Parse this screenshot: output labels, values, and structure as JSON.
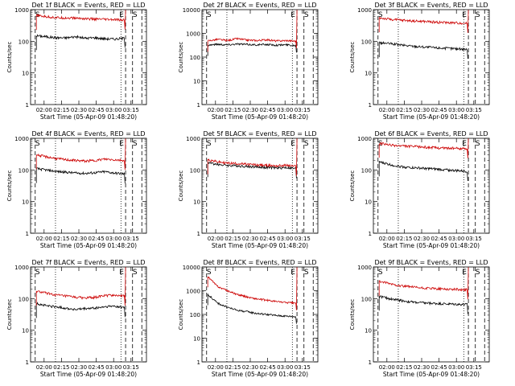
{
  "chart_data": [
    {
      "type": "line",
      "title": "Det 1f BLACK = Events, RED = LLD",
      "xlabel": "Start Time (05-Apr-09 01:48:20)",
      "ylabel": "Counts/sec",
      "y_scale": "log",
      "ylim": [
        1,
        1000
      ],
      "x_ticks": [
        "02:00",
        "02:15",
        "02:30",
        "02:45",
        "03:00",
        "03:15"
      ],
      "y_ticks": [
        "1",
        "10",
        "100",
        "1000"
      ],
      "markers": [
        "S",
        "E",
        "S"
      ],
      "series": [
        {
          "name": "Events",
          "color": "#000000",
          "values": [
            150,
            140,
            130,
            128,
            140,
            125,
            130,
            120,
            118,
            125
          ]
        },
        {
          "name": "LLD",
          "color": "#cc0000",
          "values": [
            650,
            600,
            560,
            550,
            540,
            520,
            500,
            490,
            480,
            470
          ]
        }
      ]
    },
    {
      "type": "line",
      "title": "Det 2f BLACK = Events, RED = LLD",
      "xlabel": "Start Time (05-Apr-09 01:48:20)",
      "ylabel": "Counts/sec",
      "y_scale": "log",
      "ylim": [
        1,
        10000
      ],
      "x_ticks": [
        "02:00",
        "02:15",
        "02:30",
        "02:45",
        "03:00",
        "03:15"
      ],
      "y_ticks": [
        "1",
        "10",
        "100",
        "1000",
        "10000"
      ],
      "markers": [
        "S",
        "E",
        "S"
      ],
      "series": [
        {
          "name": "Events",
          "color": "#000000",
          "values": [
            320,
            350,
            330,
            360,
            340,
            330,
            340,
            320,
            330,
            310
          ]
        },
        {
          "name": "LLD",
          "color": "#cc0000",
          "values": [
            480,
            560,
            500,
            600,
            520,
            500,
            540,
            480,
            500,
            470
          ]
        }
      ]
    },
    {
      "type": "line",
      "title": "Det 3f BLACK = Events, RED = LLD",
      "xlabel": "Start Time (05-Apr-09 01:48:20)",
      "ylabel": "Counts/sec",
      "y_scale": "log",
      "ylim": [
        1,
        1000
      ],
      "x_ticks": [
        "02:00",
        "02:15",
        "02:30",
        "02:45",
        "03:00",
        "03:15"
      ],
      "y_ticks": [
        "1",
        "10",
        "100",
        "1000"
      ],
      "markers": [
        "S",
        "E",
        "S"
      ],
      "series": [
        {
          "name": "Events",
          "color": "#000000",
          "values": [
            90,
            85,
            78,
            72,
            68,
            65,
            62,
            60,
            58,
            56
          ]
        },
        {
          "name": "LLD",
          "color": "#cc0000",
          "values": [
            550,
            500,
            470,
            450,
            430,
            420,
            400,
            390,
            380,
            370
          ]
        }
      ]
    },
    {
      "type": "line",
      "title": "Det 4f BLACK = Events, RED = LLD",
      "xlabel": "Start Time (05-Apr-09 01:48:20)",
      "ylabel": "Counts/sec",
      "y_scale": "log",
      "ylim": [
        1,
        1000
      ],
      "x_ticks": [
        "02:00",
        "02:15",
        "02:30",
        "02:45",
        "03:00",
        "03:15"
      ],
      "y_ticks": [
        "1",
        "10",
        "100",
        "1000"
      ],
      "markers": [
        "S",
        "E",
        "S"
      ],
      "series": [
        {
          "name": "Events",
          "color": "#000000",
          "values": [
            110,
            100,
            90,
            85,
            80,
            78,
            82,
            88,
            80,
            75
          ]
        },
        {
          "name": "LLD",
          "color": "#cc0000",
          "values": [
            300,
            260,
            230,
            210,
            200,
            190,
            200,
            220,
            210,
            200
          ]
        }
      ]
    },
    {
      "type": "line",
      "title": "Det 5f BLACK = Events, RED = LLD",
      "xlabel": "Start Time (05-Apr-09 01:48:20)",
      "ylabel": "Counts/sec",
      "y_scale": "log",
      "ylim": [
        1,
        1000
      ],
      "x_ticks": [
        "02:00",
        "02:15",
        "02:30",
        "02:45",
        "03:00",
        "03:15"
      ],
      "y_ticks": [
        "1",
        "10",
        "100",
        "1000"
      ],
      "markers": [
        "S",
        "E",
        "S"
      ],
      "series": [
        {
          "name": "Events",
          "color": "#000000",
          "values": [
            170,
            150,
            140,
            135,
            130,
            125,
            120,
            115,
            120,
            110
          ]
        },
        {
          "name": "LLD",
          "color": "#cc0000",
          "values": [
            210,
            180,
            165,
            160,
            150,
            145,
            140,
            135,
            140,
            130
          ]
        }
      ]
    },
    {
      "type": "line",
      "title": "Det 6f BLACK = Events, RED = LLD",
      "xlabel": "Start Time (05-Apr-09 01:48:20)",
      "ylabel": "Counts/sec",
      "y_scale": "log",
      "ylim": [
        1,
        1000
      ],
      "x_ticks": [
        "02:00",
        "02:15",
        "02:30",
        "02:45",
        "03:00",
        "03:15"
      ],
      "y_ticks": [
        "1",
        "10",
        "100",
        "1000"
      ],
      "markers": [
        "S",
        "E",
        "S"
      ],
      "series": [
        {
          "name": "Events",
          "color": "#000000",
          "values": [
            180,
            150,
            130,
            120,
            115,
            110,
            105,
            100,
            95,
            90
          ]
        },
        {
          "name": "LLD",
          "color": "#cc0000",
          "values": [
            700,
            620,
            580,
            560,
            540,
            520,
            500,
            490,
            480,
            470
          ]
        }
      ]
    },
    {
      "type": "line",
      "title": "Det 7f BLACK = Events, RED = LLD",
      "xlabel": "Start Time (05-Apr-09 01:48:20)",
      "ylabel": "Counts/sec",
      "y_scale": "log",
      "ylim": [
        1,
        1000
      ],
      "x_ticks": [
        "02:00",
        "02:15",
        "02:30",
        "02:45",
        "03:00",
        "03:15"
      ],
      "y_ticks": [
        "1",
        "10",
        "100",
        "1000"
      ],
      "markers": [
        "S",
        "E",
        "S"
      ],
      "series": [
        {
          "name": "Events",
          "color": "#000000",
          "values": [
            70,
            60,
            55,
            50,
            45,
            48,
            50,
            55,
            58,
            52
          ]
        },
        {
          "name": "LLD",
          "color": "#cc0000",
          "values": [
            170,
            150,
            130,
            120,
            110,
            105,
            110,
            125,
            130,
            120
          ]
        }
      ]
    },
    {
      "type": "line",
      "title": "Det 8f BLACK = Events, RED = LLD",
      "xlabel": "Start Time (05-Apr-09 01:48:20)",
      "ylabel": "Counts/sec",
      "y_scale": "log",
      "ylim": [
        1,
        10000
      ],
      "x_ticks": [
        "02:00",
        "02:15",
        "02:30",
        "02:45",
        "03:00",
        "03:15"
      ],
      "y_ticks": [
        "1",
        "10",
        "100",
        "1000",
        "10000"
      ],
      "markers": [
        "S",
        "E",
        "S"
      ],
      "series": [
        {
          "name": "Events",
          "color": "#000000",
          "values": [
            700,
            300,
            200,
            150,
            130,
            110,
            100,
            90,
            85,
            80
          ]
        },
        {
          "name": "LLD",
          "color": "#cc0000",
          "values": [
            4000,
            1500,
            1000,
            700,
            550,
            450,
            400,
            350,
            320,
            300
          ]
        }
      ]
    },
    {
      "type": "line",
      "title": "Det 9f BLACK = Events, RED = LLD",
      "xlabel": "Start Time (05-Apr-09 01:48:20)",
      "ylabel": "Counts/sec",
      "y_scale": "log",
      "ylim": [
        1,
        1000
      ],
      "x_ticks": [
        "02:00",
        "02:15",
        "02:30",
        "02:45",
        "03:00",
        "03:15"
      ],
      "y_ticks": [
        "1",
        "10",
        "100",
        "1000"
      ],
      "markers": [
        "S",
        "E",
        "S"
      ],
      "series": [
        {
          "name": "Events",
          "color": "#000000",
          "values": [
            120,
            100,
            90,
            80,
            75,
            72,
            70,
            68,
            66,
            65
          ]
        },
        {
          "name": "LLD",
          "color": "#cc0000",
          "values": [
            350,
            300,
            260,
            240,
            220,
            210,
            205,
            200,
            195,
            190
          ]
        }
      ]
    }
  ]
}
